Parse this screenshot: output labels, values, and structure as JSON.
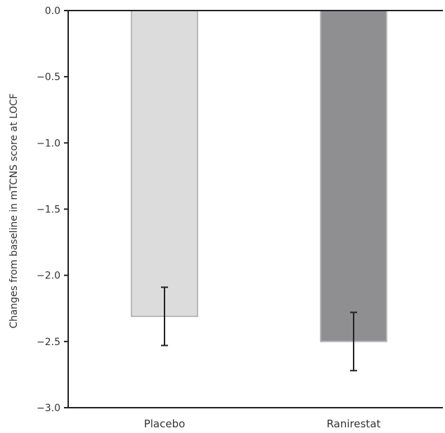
{
  "chart_data": {
    "type": "bar",
    "categories": [
      "Placebo",
      "Ranirestat"
    ],
    "values": [
      -2.31,
      -2.5
    ],
    "errors": [
      0.22,
      0.22
    ],
    "colors": [
      "#dcdcdc",
      "#8f8f91"
    ],
    "edge_colors": [
      "#b8b8b8",
      "#b8b8b8"
    ],
    "ylabel": "Changes from baseline in mTCNS score at LOCF",
    "ylim": [
      -3.0,
      0.0
    ],
    "yticks": [
      0.0,
      -0.5,
      -1.0,
      -1.5,
      -2.0,
      -2.5,
      -3.0
    ],
    "ytick_labels": [
      "0.0",
      "−0.5",
      "−1.0",
      "−1.5",
      "−2.0",
      "−2.5",
      "−3.0"
    ],
    "grid": false
  }
}
